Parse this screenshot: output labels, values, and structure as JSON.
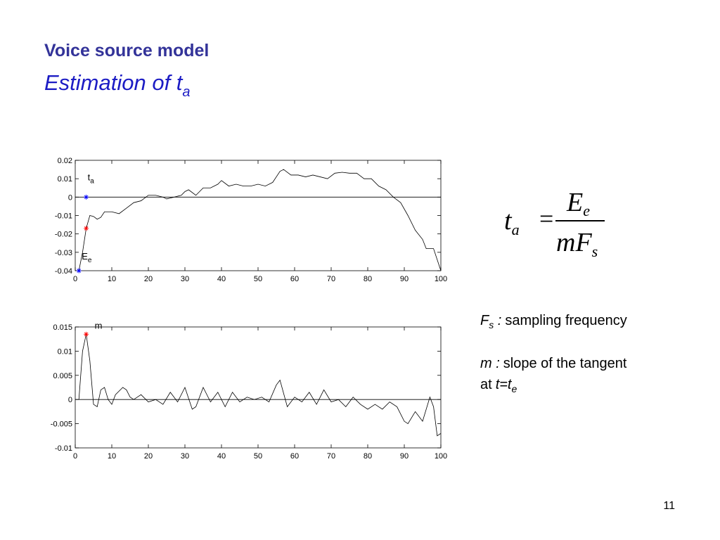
{
  "slide": {
    "title": "Voice source model",
    "subtitle": {
      "text": "Estimation of t",
      "sub": "a"
    },
    "formula": {
      "lhs": "t",
      "lhs_sub": "a",
      "equals": "=",
      "num": "E",
      "num_sub": "e",
      "den": "mF",
      "den_sub": "s"
    },
    "definitions": [
      {
        "term": "F",
        "term_sub": "s",
        "sep": " :",
        "text": "sampling frequency"
      },
      {
        "term": "m :",
        "text": "slope of the tangent",
        "text2": "at",
        "term2": "t=t",
        "term2_sub": "e"
      }
    ],
    "page_number": "11"
  },
  "chart_data": [
    {
      "type": "line",
      "x": [
        1,
        2,
        3,
        4,
        5,
        6,
        7,
        8,
        10,
        12,
        14,
        16,
        18,
        20,
        22,
        24,
        25,
        27,
        29,
        30,
        31,
        33,
        35,
        37,
        39,
        40,
        42,
        44,
        46,
        48,
        50,
        52,
        54,
        56,
        57,
        59,
        61,
        63,
        65,
        67,
        69,
        71,
        73,
        75,
        77,
        79,
        81,
        83,
        85,
        87,
        89,
        91,
        93,
        95,
        96,
        98,
        100
      ],
      "series": [
        {
          "color": "#000000",
          "values": [
            -0.04,
            -0.03,
            -0.017,
            -0.01,
            -0.0105,
            -0.012,
            -0.011,
            -0.008,
            -0.008,
            -0.009,
            -0.006,
            -0.003,
            -0.002,
            0.001,
            0.001,
            0.0,
            -0.001,
            0.0,
            0.001,
            0.003,
            0.004,
            0.001,
            0.005,
            0.005,
            0.007,
            0.009,
            0.006,
            0.007,
            0.006,
            0.006,
            0.007,
            0.006,
            0.008,
            0.014,
            0.015,
            0.012,
            0.012,
            0.011,
            0.012,
            0.011,
            0.01,
            0.013,
            0.0135,
            0.013,
            0.013,
            0.01,
            0.01,
            0.006,
            0.004,
            0.0,
            -0.003,
            -0.01,
            -0.018,
            -0.023,
            -0.028,
            -0.028,
            -0.04
          ]
        }
      ],
      "markers": [
        {
          "x": 3,
          "y": 0,
          "color": "#0000ff",
          "label": "t",
          "label_sub": "a"
        },
        {
          "x": 1,
          "y": -0.04,
          "color": "#0000ff",
          "label": "E",
          "label_sub": "e"
        },
        {
          "x": 3,
          "y": -0.017,
          "color": "#ff0000"
        }
      ],
      "zero_line": true,
      "xlim": [
        0,
        100
      ],
      "xticks": [
        0,
        10,
        20,
        30,
        40,
        50,
        60,
        70,
        80,
        90,
        100
      ],
      "ylim": [
        -0.04,
        0.02
      ],
      "yticks": [
        0.02,
        0.01,
        0,
        -0.01,
        -0.02,
        -0.03,
        -0.04
      ]
    },
    {
      "type": "line",
      "x": [
        1,
        2,
        3,
        4,
        5,
        6,
        7,
        8,
        9,
        10,
        11,
        13,
        14,
        15,
        16,
        18,
        20,
        22,
        24,
        26,
        28,
        30,
        32,
        33,
        35,
        37,
        39,
        41,
        43,
        45,
        47,
        49,
        51,
        53,
        55,
        56,
        58,
        60,
        62,
        64,
        66,
        68,
        70,
        72,
        74,
        76,
        78,
        80,
        82,
        84,
        86,
        88,
        90,
        91,
        93,
        95,
        97,
        98,
        99,
        100
      ],
      "series": [
        {
          "color": "#000000",
          "values": [
            0.0,
            0.01,
            0.0135,
            0.008,
            -0.001,
            -0.0015,
            0.002,
            0.0025,
            0.0,
            -0.001,
            0.001,
            0.0025,
            0.002,
            0.0005,
            0.0,
            0.001,
            -0.0005,
            0.0,
            -0.001,
            0.0015,
            -0.0005,
            0.0025,
            -0.002,
            -0.0015,
            0.0025,
            -0.0005,
            0.0015,
            -0.0015,
            0.0015,
            -0.0005,
            0.0005,
            0.0,
            0.0005,
            -0.0005,
            0.003,
            0.004,
            -0.0015,
            0.0005,
            -0.0005,
            0.0015,
            -0.001,
            0.002,
            -0.0005,
            0.0,
            -0.0015,
            0.0005,
            -0.001,
            -0.002,
            -0.001,
            -0.002,
            -0.0005,
            -0.0015,
            -0.0045,
            -0.005,
            -0.0025,
            -0.0045,
            0.0005,
            -0.0015,
            -0.0075,
            -0.007
          ]
        }
      ],
      "markers": [
        {
          "x": 3,
          "y": 0.0135,
          "color": "#ff0000",
          "label": "m"
        }
      ],
      "zero_line": true,
      "xlim": [
        0,
        100
      ],
      "xticks": [
        0,
        10,
        20,
        30,
        40,
        50,
        60,
        70,
        80,
        90,
        100
      ],
      "ylim": [
        -0.01,
        0.015
      ],
      "yticks": [
        0.015,
        0.01,
        0.005,
        0,
        -0.005,
        -0.01
      ]
    }
  ]
}
